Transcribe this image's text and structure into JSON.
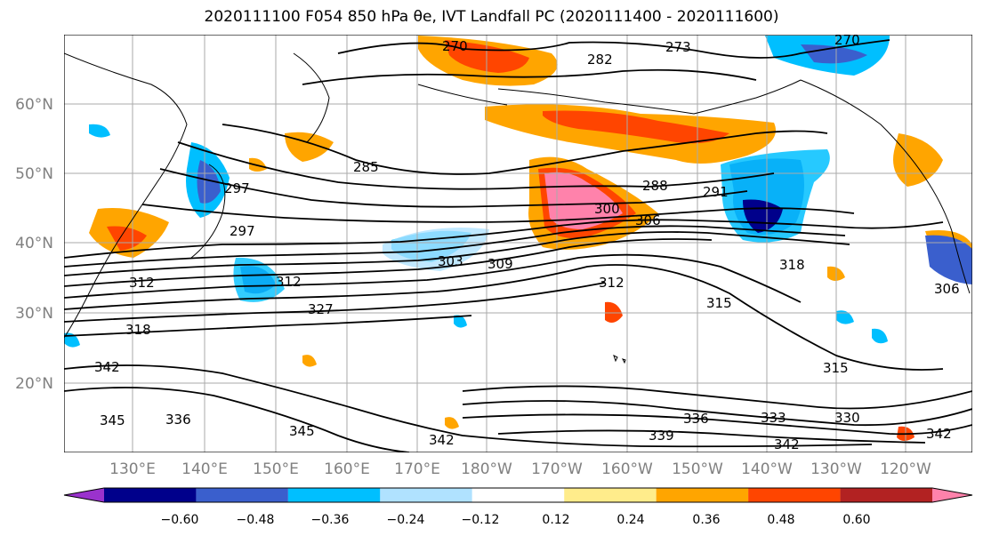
{
  "title": "2020111100 F054 850 hPa θe, IVT Landfall PC (2020111400 - 2020111600)",
  "map": {
    "lat_labels": [
      "60°N",
      "50°N",
      "40°N",
      "30°N",
      "20°N"
    ],
    "lon_labels": [
      "130°E",
      "140°E",
      "150°E",
      "160°E",
      "170°E",
      "180°W",
      "170°W",
      "160°W",
      "150°W",
      "140°W",
      "130°W",
      "120°W"
    ],
    "contour_labels": [
      "270",
      "273",
      "282",
      "270",
      "285",
      "288",
      "291",
      "297",
      "297",
      "300",
      "306",
      "303",
      "309",
      "312",
      "312",
      "315",
      "318",
      "318",
      "312",
      "327",
      "315",
      "342",
      "336",
      "333",
      "330",
      "339",
      "342",
      "342",
      "345",
      "345",
      "336",
      "342",
      "306"
    ],
    "colors": {
      "neg_060": "#9a32cd",
      "neg_048": "#00008b",
      "neg_036": "#3a5fcd",
      "neg_024": "#00bfff",
      "neg_012": "#b0e2ff",
      "zero": "#ffffff",
      "pos_012": "#ffec8b",
      "pos_024": "#ffa500",
      "pos_036": "#ff4500",
      "pos_048": "#b22222",
      "pos_060": "#ff82ab"
    }
  },
  "colorbar": {
    "tick_labels": [
      "−0.60",
      "−0.48",
      "−0.36",
      "−0.24",
      "−0.12",
      "0.12",
      "0.24",
      "0.36",
      "0.48",
      "0.60"
    ],
    "bins": [
      {
        "color": "#9a32cd"
      },
      {
        "color": "#00008b"
      },
      {
        "color": "#3a5fcd"
      },
      {
        "color": "#00bfff"
      },
      {
        "color": "#b0e2ff"
      },
      {
        "color": "#ffffff"
      },
      {
        "color": "#ffec8b"
      },
      {
        "color": "#ffa500"
      },
      {
        "color": "#ff4500"
      },
      {
        "color": "#b22222"
      },
      {
        "color": "#ff82ab"
      }
    ]
  }
}
